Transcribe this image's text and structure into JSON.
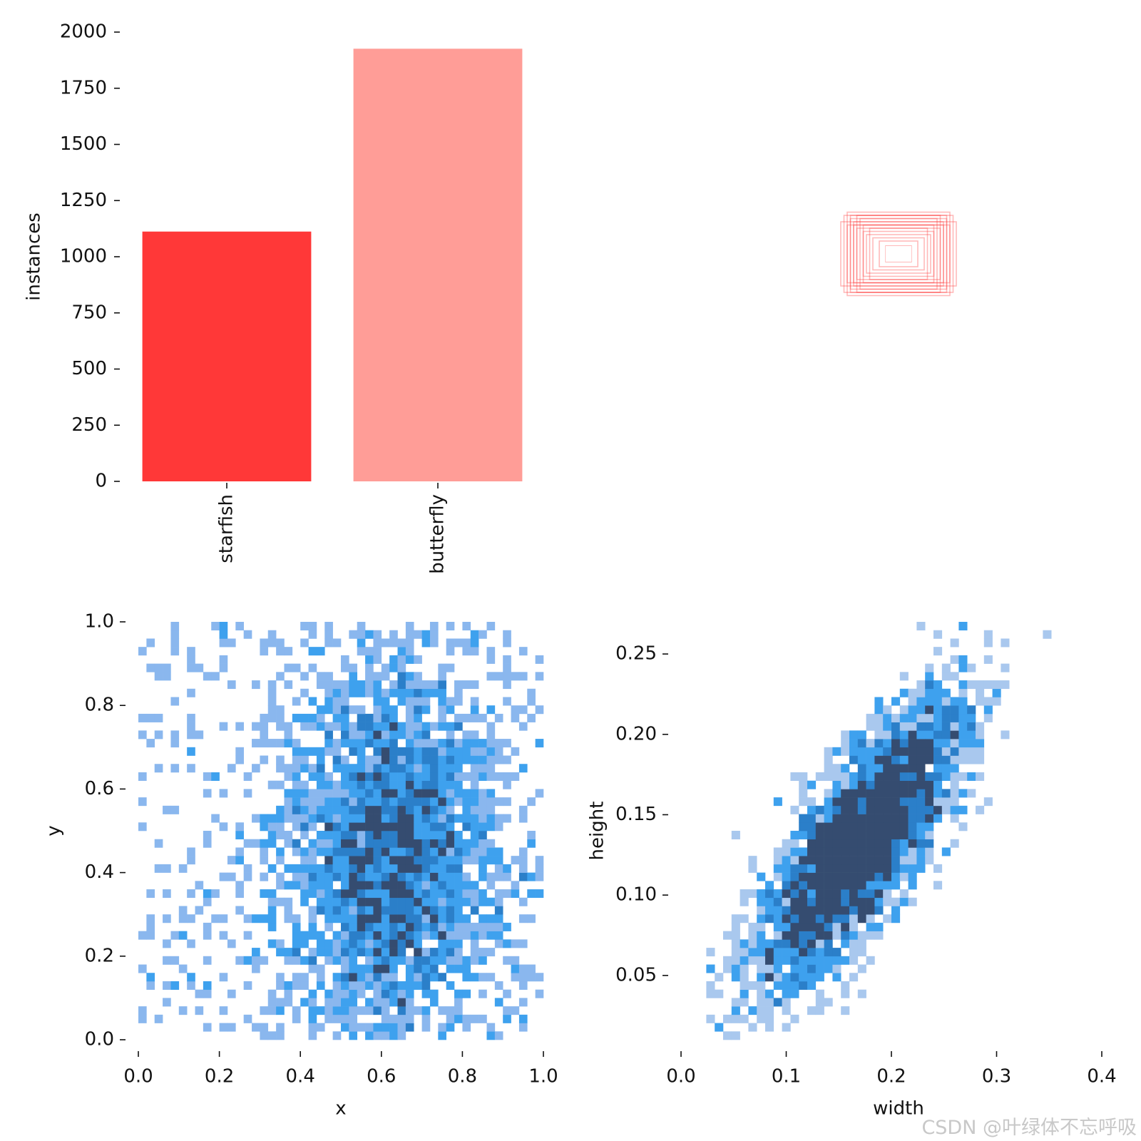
{
  "chart_data": [
    {
      "type": "bar",
      "categories": [
        "starfish",
        "butterfly"
      ],
      "values": [
        1112,
        1926
      ],
      "colors": [
        "#ff3838",
        "#ff9d97"
      ],
      "ylabel": "instances",
      "ylim": [
        0,
        2000
      ],
      "yticks": [
        "0",
        "250",
        "500",
        "750",
        "1000",
        "1250",
        "1500",
        "1750",
        "2000"
      ],
      "grid": false
    },
    {
      "type": "box-overlay",
      "color": "#ff3838",
      "boxes": [
        {
          "w": 0.04,
          "h": 0.025
        },
        {
          "w": 0.06,
          "h": 0.04
        },
        {
          "w": 0.08,
          "h": 0.05
        },
        {
          "w": 0.1,
          "h": 0.06
        },
        {
          "w": 0.11,
          "h": 0.07
        },
        {
          "w": 0.13,
          "h": 0.08
        },
        {
          "w": 0.14,
          "h": 0.1
        },
        {
          "w": 0.15,
          "h": 0.12
        },
        {
          "w": 0.16,
          "h": 0.13
        },
        {
          "w": 0.17,
          "h": 0.12
        },
        {
          "w": 0.18,
          "h": 0.1
        },
        {
          "w": 0.14,
          "h": 0.09
        },
        {
          "w": 0.12,
          "h": 0.11
        },
        {
          "w": 0.16,
          "h": 0.09
        },
        {
          "w": 0.09,
          "h": 0.08
        },
        {
          "w": 0.13,
          "h": 0.12
        },
        {
          "w": 0.15,
          "h": 0.11
        },
        {
          "w": 0.11,
          "h": 0.09
        }
      ]
    },
    {
      "type": "heatmap",
      "xlabel": "x",
      "ylabel": "y",
      "xlim": [
        0,
        1
      ],
      "ylim": [
        0,
        1
      ],
      "xticks": [
        "0.0",
        "0.2",
        "0.4",
        "0.6",
        "0.8",
        "1.0"
      ],
      "yticks": [
        "0.0",
        "0.2",
        "0.4",
        "0.6",
        "0.8",
        "1.0"
      ],
      "bins": 50,
      "center": [
        0.62,
        0.45
      ],
      "colors": [
        "#8ab7ee",
        "#3ea1ee",
        "#2b7fc9",
        "#354c70"
      ]
    },
    {
      "type": "heatmap",
      "xlabel": "width",
      "ylabel": "height",
      "xlim": [
        0,
        0.4
      ],
      "ylim": [
        0.01,
        0.27
      ],
      "xticks": [
        "0.0",
        "0.1",
        "0.2",
        "0.3",
        "0.4"
      ],
      "yticks": [
        "0.05",
        "0.10",
        "0.15",
        "0.20",
        "0.25"
      ],
      "bins": 50,
      "trend": {
        "slope": 0.72,
        "intercept": 0.0
      },
      "colors": [
        "#a9c8ee",
        "#3ea1ee",
        "#2b7fc9",
        "#354c70"
      ]
    }
  ],
  "watermark": "CSDN @叶绿体不忘呼吸"
}
